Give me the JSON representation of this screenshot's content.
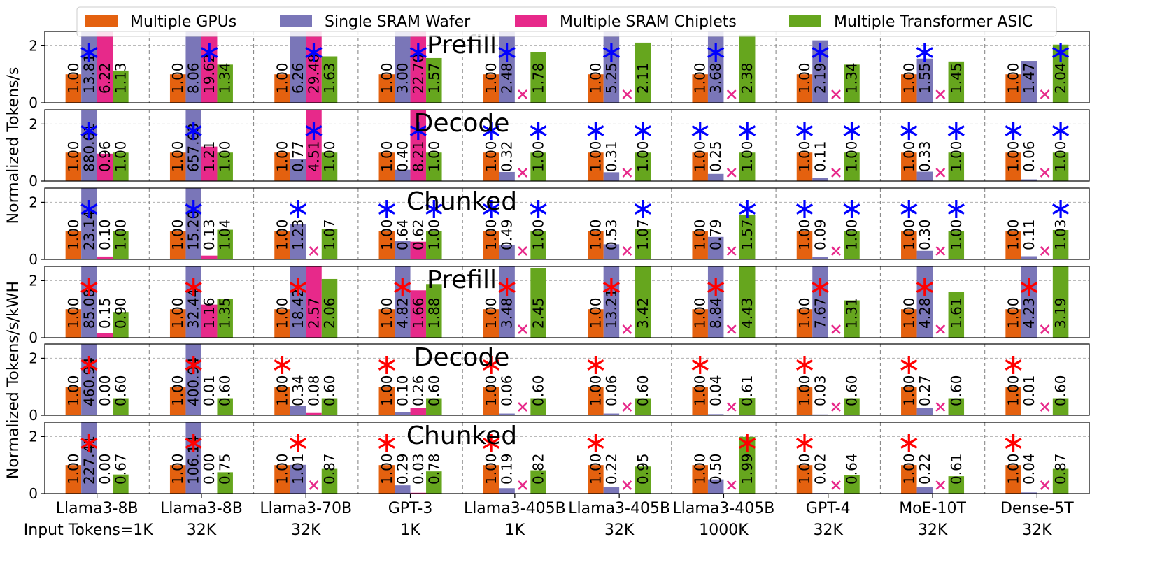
{
  "chart_data": {
    "type": "bar",
    "legend": [
      {
        "name": "Multiple GPUs",
        "color": "#e4610f"
      },
      {
        "name": "Single SRAM Wafer",
        "color": "#7a76b8"
      },
      {
        "name": "Multiple SRAM Chiplets",
        "color": "#e7298a"
      },
      {
        "name": "Multiple Transformer ASIC",
        "color": "#66a61e"
      }
    ],
    "legend_position": "top",
    "categories": [
      [
        "Llama3-8B",
        "Input Tokens=1K"
      ],
      [
        "Llama3-8B",
        "32K"
      ],
      [
        "Llama3-70B",
        "32K"
      ],
      [
        "GPT-3",
        "1K"
      ],
      [
        "Llama3-405B",
        "1K"
      ],
      [
        "Llama3-405B",
        "32K"
      ],
      [
        "Llama3-405B",
        "1000K"
      ],
      [
        "GPT-4",
        "32K"
      ],
      [
        "MoE-10T",
        "32K"
      ],
      [
        "Dense-5T",
        "32K"
      ]
    ],
    "ylim": [
      0,
      2.5
    ],
    "yticks": [
      "0",
      "2"
    ],
    "grid": "horizontal dashed",
    "ylabels": [
      "Normalized Tokens/s",
      "Normalized Tokens/s/kWH"
    ],
    "panels": [
      {
        "title": "Prefill",
        "values": [
          [
            1.0,
            13.81,
            6.22,
            1.13
          ],
          [
            1.0,
            8.06,
            19.62,
            1.34
          ],
          [
            1.0,
            6.26,
            29.48,
            1.63
          ],
          [
            1.0,
            3.0,
            22.7,
            1.57
          ],
          [
            1.0,
            2.48,
            null,
            1.78
          ],
          [
            1.0,
            5.25,
            null,
            2.11
          ],
          [
            1.0,
            3.68,
            null,
            2.38
          ],
          [
            1.0,
            2.19,
            null,
            1.34
          ],
          [
            1.0,
            1.55,
            null,
            1.45
          ],
          [
            1.0,
            1.47,
            null,
            2.04
          ]
        ],
        "labels": [
          [
            "1.00",
            "13.81",
            "6.22",
            "1.13"
          ],
          [
            "1.00",
            "8.06",
            "19.62",
            "1.34"
          ],
          [
            "1.00",
            "6.26",
            "29.48",
            "1.63"
          ],
          [
            "1.00",
            "3.00",
            "22.70",
            "1.57"
          ],
          [
            "1.00",
            "2.48",
            "",
            "1.78"
          ],
          [
            "1.00",
            "5.25",
            "",
            "2.11"
          ],
          [
            "1.00",
            "3.68",
            "",
            "2.38"
          ],
          [
            "1.00",
            "2.19",
            "",
            "1.34"
          ],
          [
            "1.00",
            "1.55",
            "",
            "1.45"
          ],
          [
            "1.00",
            "1.47",
            "",
            "2.04"
          ]
        ],
        "best": [
          1,
          2,
          2,
          2,
          1,
          1,
          1,
          1,
          1,
          3
        ]
      },
      {
        "title": "Decode",
        "values": [
          [
            1.0,
            880.01,
            0.96,
            1.0
          ],
          [
            1.0,
            657.63,
            1.21,
            1.0
          ],
          [
            1.0,
            0.77,
            4.51,
            1.0
          ],
          [
            1.0,
            0.4,
            8.21,
            1.0
          ],
          [
            1.0,
            0.32,
            null,
            1.0
          ],
          [
            1.0,
            0.31,
            null,
            1.0
          ],
          [
            1.0,
            0.25,
            null,
            1.0
          ],
          [
            1.0,
            0.11,
            null,
            1.0
          ],
          [
            1.0,
            0.33,
            null,
            1.0
          ],
          [
            1.0,
            0.06,
            null,
            1.0
          ]
        ],
        "labels": [
          [
            "1.00",
            "880.01",
            "0.96",
            "1.00"
          ],
          [
            "1.00",
            "657.63",
            "1.21",
            "1.00"
          ],
          [
            "1.00",
            "0.77",
            "4.51",
            "1.00"
          ],
          [
            "1.00",
            "0.40",
            "8.21",
            "1.00"
          ],
          [
            "1.00",
            "0.32",
            "",
            "1.00"
          ],
          [
            "1.00",
            "0.31",
            "",
            "1.00"
          ],
          [
            "1.00",
            "0.25",
            "",
            "1.00"
          ],
          [
            "1.00",
            "0.11",
            "",
            "1.00"
          ],
          [
            "1.00",
            "0.33",
            "",
            "1.00"
          ],
          [
            "1.00",
            "0.06",
            "",
            "1.00"
          ]
        ],
        "best": [
          1,
          1,
          2,
          2,
          [
            0,
            3
          ],
          [
            0,
            3
          ],
          [
            0,
            3
          ],
          [
            0,
            3
          ],
          [
            0,
            3
          ],
          [
            0,
            3
          ]
        ]
      },
      {
        "title": "Chunked",
        "values": [
          [
            1.0,
            23.14,
            0.1,
            1.0
          ],
          [
            1.0,
            15.2,
            0.13,
            1.04
          ],
          [
            1.0,
            1.23,
            null,
            1.07
          ],
          [
            1.0,
            0.64,
            0.62,
            1.0
          ],
          [
            1.0,
            0.49,
            null,
            1.0
          ],
          [
            1.0,
            0.53,
            null,
            1.07
          ],
          [
            1.0,
            0.79,
            null,
            1.57
          ],
          [
            1.0,
            0.09,
            null,
            1.0
          ],
          [
            1.0,
            0.3,
            null,
            1.0
          ],
          [
            1.0,
            0.11,
            null,
            1.03
          ]
        ],
        "labels": [
          [
            "1.00",
            "23.14",
            "0.10",
            "1.00"
          ],
          [
            "1.00",
            "15.20",
            "0.13",
            "1.04"
          ],
          [
            "1.00",
            "1.23",
            "",
            "1.07"
          ],
          [
            "1.00",
            "0.64",
            "0.62",
            "1.00"
          ],
          [
            "1.00",
            "0.49",
            "",
            "1.00"
          ],
          [
            "1.00",
            "0.53",
            "",
            "1.07"
          ],
          [
            "1.00",
            "0.79",
            "",
            "1.57"
          ],
          [
            "1.00",
            "0.09",
            "",
            "1.00"
          ],
          [
            "1.00",
            "0.30",
            "",
            "1.00"
          ],
          [
            "1.00",
            "0.11",
            "",
            "1.03"
          ]
        ],
        "best": [
          1,
          1,
          1,
          [
            0,
            3
          ],
          [
            0,
            3
          ],
          3,
          3,
          [
            0,
            3
          ],
          [
            0,
            3
          ],
          3
        ]
      },
      {
        "title": "Prefill",
        "values": [
          [
            1.0,
            85.08,
            0.15,
            0.9
          ],
          [
            1.0,
            32.44,
            1.16,
            1.35
          ],
          [
            1.0,
            18.42,
            2.57,
            2.06
          ],
          [
            1.0,
            4.82,
            1.66,
            1.88
          ],
          [
            1.0,
            3.48,
            null,
            2.45
          ],
          [
            1.0,
            13.21,
            null,
            3.42
          ],
          [
            1.0,
            8.84,
            null,
            4.43
          ],
          [
            1.0,
            7.67,
            null,
            1.31
          ],
          [
            1.0,
            4.28,
            null,
            1.61
          ],
          [
            1.0,
            4.23,
            null,
            3.19
          ]
        ],
        "labels": [
          [
            "1.00",
            "85.08",
            "0.15",
            "0.90"
          ],
          [
            "1.00",
            "32.44",
            "1.16",
            "1.35"
          ],
          [
            "1.00",
            "18.42",
            "2.57",
            "2.06"
          ],
          [
            "1.00",
            "4.82",
            "1.66",
            "1.88"
          ],
          [
            "1.00",
            "3.48",
            "",
            "2.45"
          ],
          [
            "1.00",
            "13.21",
            "",
            "3.42"
          ],
          [
            "1.00",
            "8.84",
            "",
            "4.43"
          ],
          [
            "1.00",
            "7.67",
            "",
            "1.31"
          ],
          [
            "1.00",
            "4.28",
            "",
            "1.61"
          ],
          [
            "1.00",
            "4.23",
            "",
            "3.19"
          ]
        ],
        "best": [
          1,
          1,
          1,
          1,
          1,
          1,
          1,
          1,
          1,
          1
        ]
      },
      {
        "title": "Decode",
        "values": [
          [
            1.0,
            460.94,
            0.0,
            0.6
          ],
          [
            1.0,
            400.94,
            0.01,
            0.6
          ],
          [
            1.0,
            0.34,
            0.08,
            0.6
          ],
          [
            1.0,
            0.1,
            0.26,
            0.6
          ],
          [
            1.0,
            0.06,
            null,
            0.6
          ],
          [
            1.0,
            0.06,
            null,
            0.6
          ],
          [
            1.0,
            0.04,
            null,
            0.61
          ],
          [
            1.0,
            0.03,
            null,
            0.6
          ],
          [
            1.0,
            0.27,
            null,
            0.6
          ],
          [
            1.0,
            0.01,
            null,
            0.6
          ]
        ],
        "labels": [
          [
            "1.00",
            "460.94",
            "0.00",
            "0.60"
          ],
          [
            "1.00",
            "400.94",
            "0.01",
            "0.60"
          ],
          [
            "1.00",
            "0.34",
            "0.08",
            "0.60"
          ],
          [
            "1.00",
            "0.10",
            "0.26",
            "0.60"
          ],
          [
            "1.00",
            "0.06",
            "",
            "0.60"
          ],
          [
            "1.00",
            "0.06",
            "",
            "0.60"
          ],
          [
            "1.00",
            "0.04",
            "",
            "0.61"
          ],
          [
            "1.00",
            "0.03",
            "",
            "0.60"
          ],
          [
            "1.00",
            "0.27",
            "",
            "0.60"
          ],
          [
            "1.00",
            "0.01",
            "",
            "0.60"
          ]
        ],
        "best": [
          1,
          1,
          0,
          0,
          0,
          0,
          0,
          0,
          0,
          0
        ]
      },
      {
        "title": "Chunked",
        "values": [
          [
            1.0,
            227.41,
            0.0,
            0.67
          ],
          [
            1.0,
            106.14,
            0.0,
            0.75
          ],
          [
            1.0,
            1.01,
            null,
            0.87
          ],
          [
            1.0,
            0.29,
            0.03,
            0.78
          ],
          [
            1.0,
            0.19,
            null,
            0.82
          ],
          [
            1.0,
            0.22,
            null,
            0.95
          ],
          [
            1.0,
            0.5,
            null,
            1.99
          ],
          [
            1.0,
            0.02,
            null,
            0.64
          ],
          [
            1.0,
            0.22,
            null,
            0.61
          ],
          [
            1.0,
            0.04,
            null,
            0.87
          ]
        ],
        "labels": [
          [
            "1.00",
            "227.41",
            "0.00",
            "0.67"
          ],
          [
            "1.00",
            "106.14",
            "0.00",
            "0.75"
          ],
          [
            "1.00",
            "1.01",
            "",
            "0.87"
          ],
          [
            "1.00",
            "0.29",
            "0.03",
            "0.78"
          ],
          [
            "1.00",
            "0.19",
            "",
            "0.82"
          ],
          [
            "1.00",
            "0.22",
            "",
            "0.95"
          ],
          [
            "1.00",
            "0.50",
            "",
            "1.99"
          ],
          [
            "1.00",
            "0.02",
            "",
            "0.64"
          ],
          [
            "1.00",
            "0.22",
            "",
            "0.61"
          ],
          [
            "1.00",
            "0.04",
            "",
            "0.87"
          ]
        ],
        "best": [
          1,
          1,
          1,
          0,
          0,
          0,
          3,
          0,
          0,
          0
        ]
      }
    ],
    "best_colors": [
      "#0000ff",
      "#0000ff",
      "#0000ff",
      "#ff0000",
      "#ff0000",
      "#ff0000"
    ],
    "best_marker": "*",
    "infeasible_marker": "x",
    "infeasible_color": "#e7298a"
  }
}
